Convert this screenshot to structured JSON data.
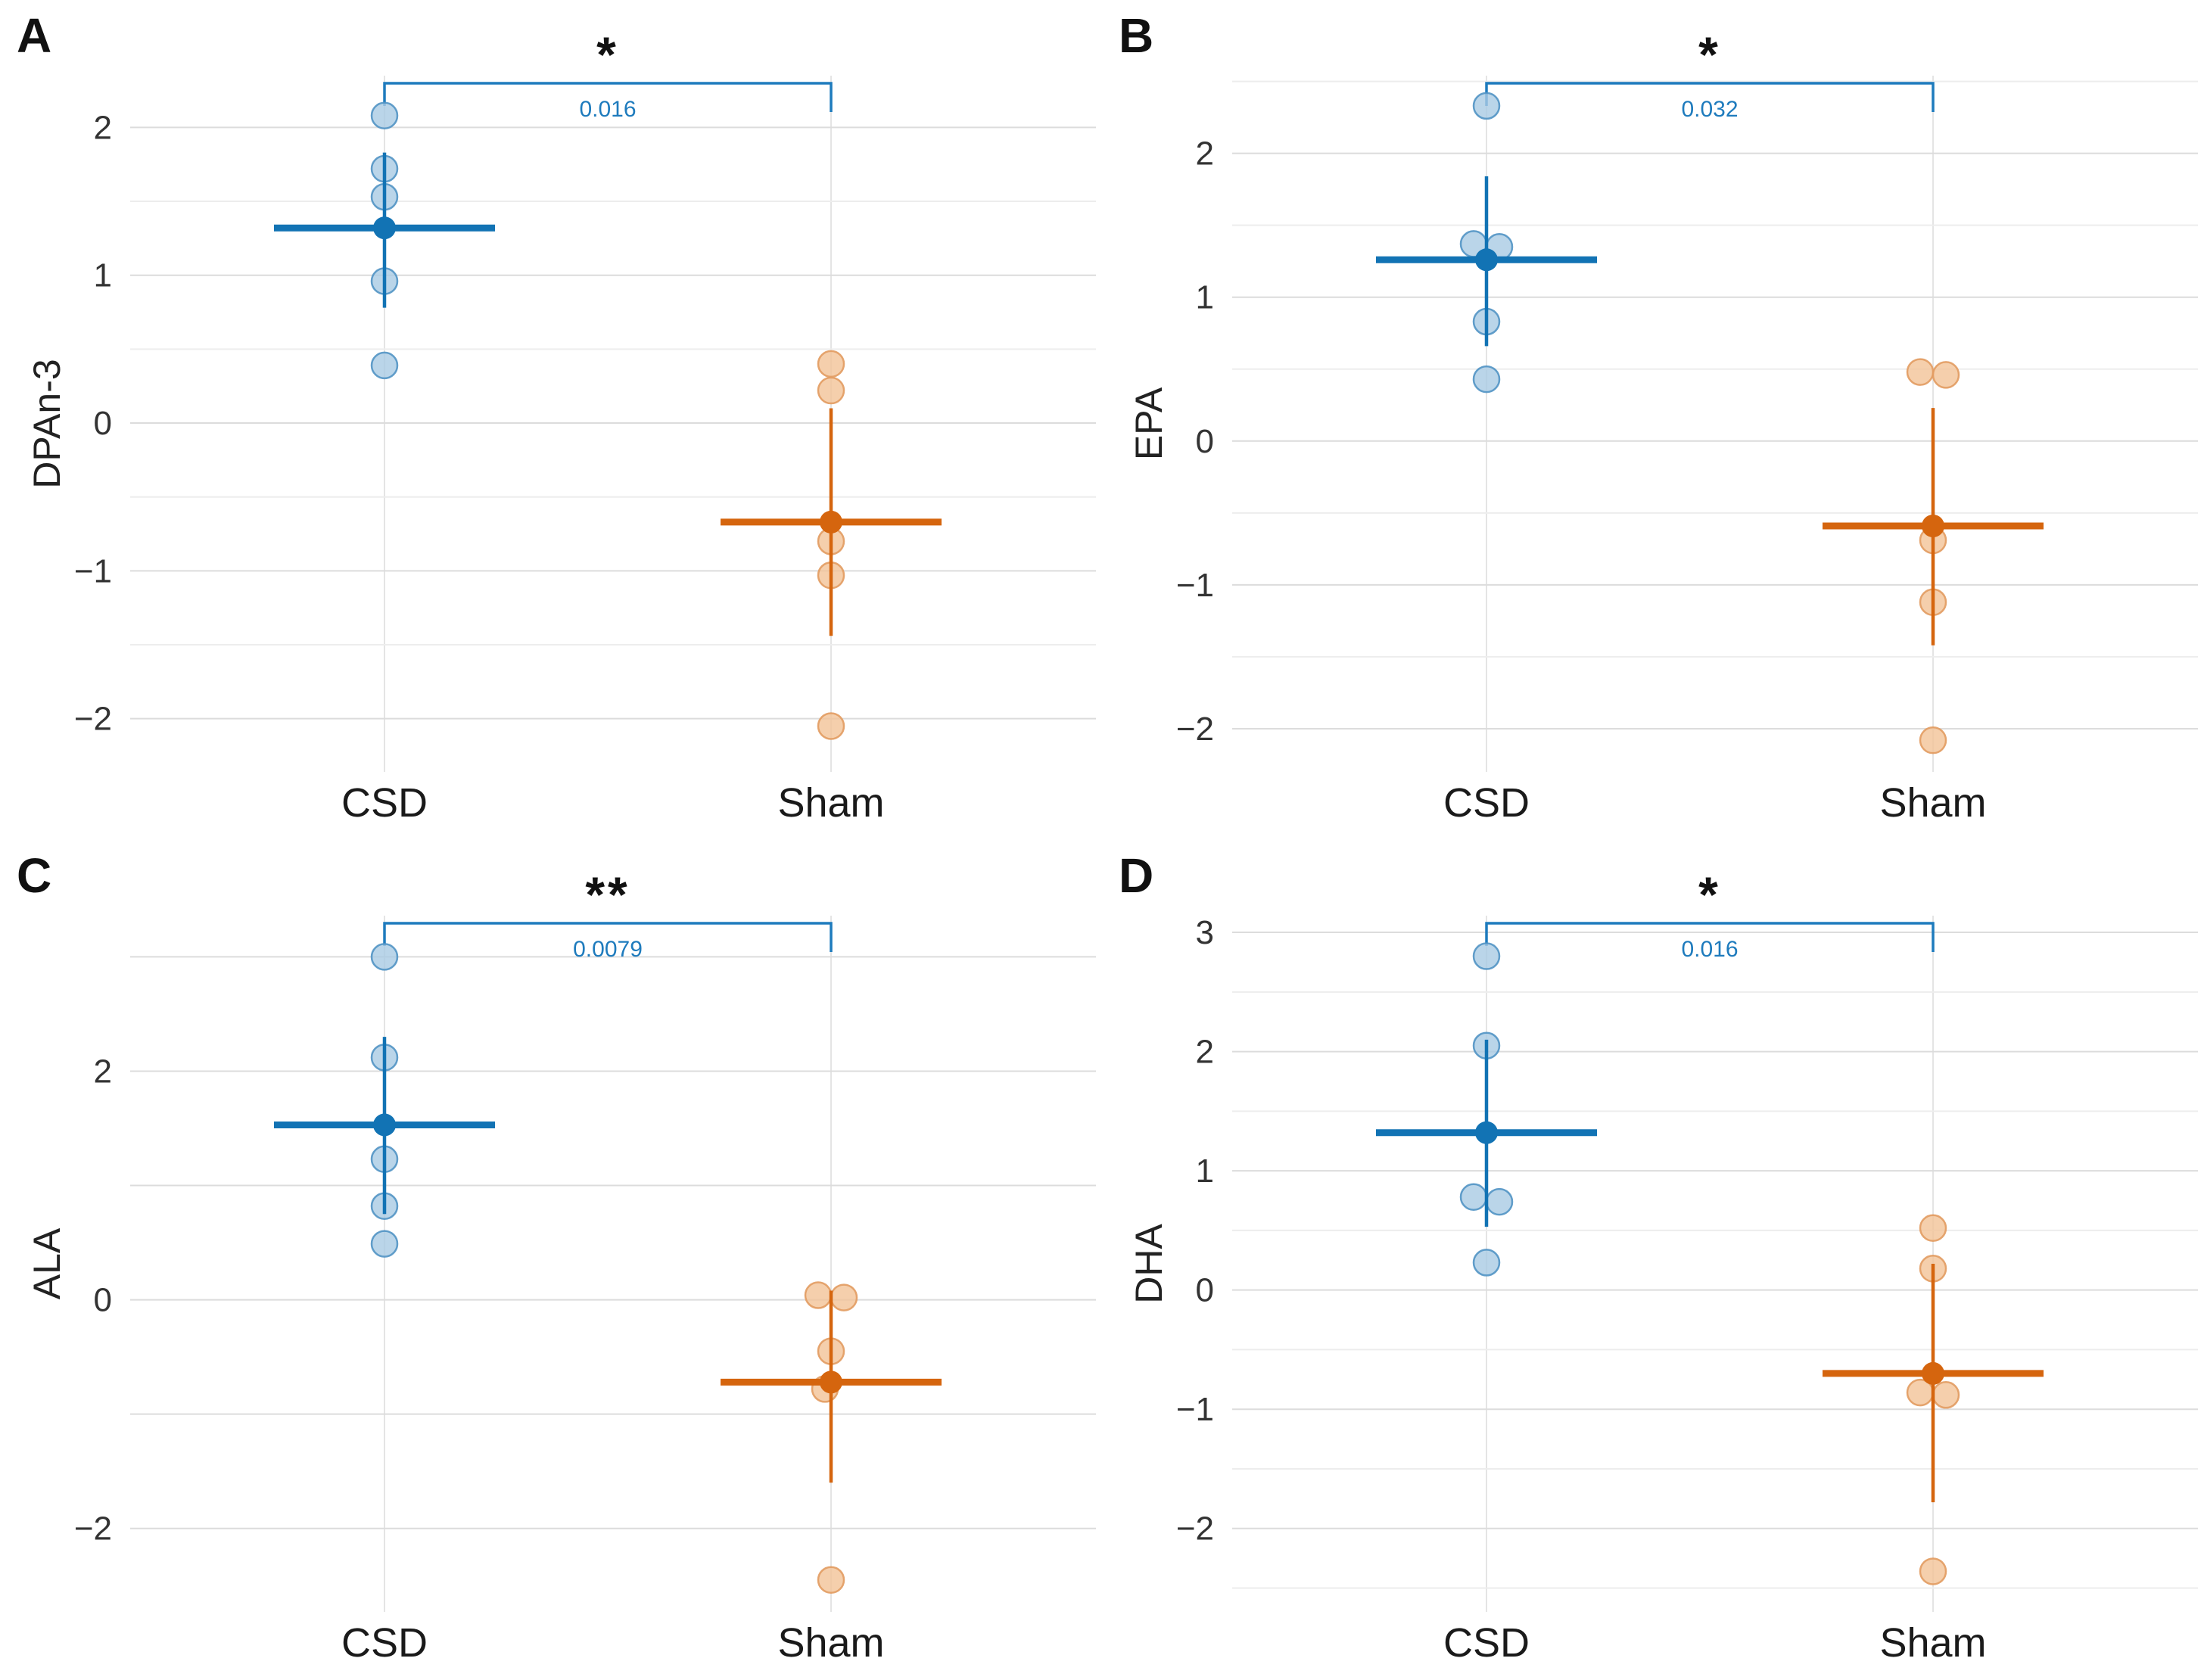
{
  "figure": {
    "groups": [
      "CSD",
      "Sham"
    ],
    "colors": {
      "csd_mean": "#1273b4",
      "csd_point_fill": "#a9cbe3",
      "csd_point_stroke": "#5193c4",
      "sham_mean": "#d5650e",
      "sham_point_fill": "#f3c397",
      "sham_point_stroke": "#e29b60",
      "significance": "#1e7bbd",
      "grid_major": "#dcdcdc",
      "grid_minor": "#ededed",
      "column_line": "#e4e4e4",
      "text": "#333333"
    }
  },
  "chart_data": [
    {
      "type": "scatter",
      "panel_label": "A",
      "ylabel": "DPAn-3",
      "significance": "*",
      "p_value": "0.016",
      "categories": [
        "CSD",
        "Sham"
      ],
      "ylim": [
        -2.36,
        2.35
      ],
      "yticks": [
        2,
        1,
        0,
        -1,
        -2
      ],
      "grid_step": 0.5,
      "series": [
        {
          "name": "CSD",
          "points": [
            [
              2.08,
              0
            ],
            [
              1.72,
              0
            ],
            [
              1.53,
              0
            ],
            [
              0.96,
              0
            ],
            [
              0.39,
              0
            ]
          ],
          "mean": 1.32,
          "err_low": 0.78,
          "err_high": 1.83
        },
        {
          "name": "Sham",
          "points": [
            [
              0.4,
              0
            ],
            [
              0.22,
              0
            ],
            [
              -0.8,
              0
            ],
            [
              -1.03,
              0
            ],
            [
              -2.05,
              0
            ]
          ],
          "mean": -0.67,
          "err_low": -1.44,
          "err_high": 0.1
        }
      ]
    },
    {
      "type": "scatter",
      "panel_label": "B",
      "ylabel": "EPA",
      "significance": "*",
      "p_value": "0.032",
      "categories": [
        "CSD",
        "Sham"
      ],
      "ylim": [
        -2.3,
        2.54
      ],
      "yticks": [
        2,
        1,
        0,
        -1,
        -2
      ],
      "grid_step": 0.5,
      "series": [
        {
          "name": "CSD",
          "points": [
            [
              2.33,
              0
            ],
            [
              1.37,
              -17
            ],
            [
              1.35,
              17
            ],
            [
              0.83,
              0
            ],
            [
              0.43,
              0
            ]
          ],
          "mean": 1.26,
          "err_low": 0.66,
          "err_high": 1.84
        },
        {
          "name": "Sham",
          "points": [
            [
              0.48,
              -17
            ],
            [
              0.46,
              17
            ],
            [
              -0.69,
              0
            ],
            [
              -1.12,
              0
            ],
            [
              -2.08,
              0
            ]
          ],
          "mean": -0.59,
          "err_low": -1.42,
          "err_high": 0.23
        }
      ]
    },
    {
      "type": "scatter",
      "panel_label": "C",
      "ylabel": "ALA",
      "significance": "**",
      "p_value": "0.0079",
      "categories": [
        "CSD",
        "Sham"
      ],
      "ylim": [
        -2.73,
        3.36
      ],
      "yticks": [
        2,
        0,
        -2
      ],
      "grid_step": 1,
      "series": [
        {
          "name": "CSD",
          "points": [
            [
              3.0,
              0
            ],
            [
              2.12,
              0
            ],
            [
              1.23,
              0
            ],
            [
              0.82,
              0
            ],
            [
              0.49,
              0
            ]
          ],
          "mean": 1.53,
          "err_low": 0.75,
          "err_high": 2.3
        },
        {
          "name": "Sham",
          "points": [
            [
              0.04,
              -17
            ],
            [
              0.02,
              17
            ],
            [
              -0.45,
              0
            ],
            [
              -0.78,
              -8
            ],
            [
              -2.45,
              0
            ]
          ],
          "mean": -0.72,
          "err_low": -1.6,
          "err_high": 0.08
        }
      ]
    },
    {
      "type": "scatter",
      "panel_label": "D",
      "ylabel": "DHA",
      "significance": "*",
      "p_value": "0.016",
      "categories": [
        "CSD",
        "Sham"
      ],
      "ylim": [
        -2.7,
        3.14
      ],
      "yticks": [
        3,
        2,
        1,
        0,
        -1,
        -2
      ],
      "grid_step": 0.5,
      "series": [
        {
          "name": "CSD",
          "points": [
            [
              2.8,
              0
            ],
            [
              2.05,
              0
            ],
            [
              0.78,
              -17
            ],
            [
              0.74,
              17
            ],
            [
              0.23,
              0
            ]
          ],
          "mean": 1.32,
          "err_low": 0.53,
          "err_high": 2.1
        },
        {
          "name": "Sham",
          "points": [
            [
              0.52,
              0
            ],
            [
              0.18,
              0
            ],
            [
              -0.86,
              -17
            ],
            [
              -0.88,
              17
            ],
            [
              -2.36,
              0
            ]
          ],
          "mean": -0.7,
          "err_low": -1.78,
          "err_high": 0.22
        }
      ]
    }
  ]
}
